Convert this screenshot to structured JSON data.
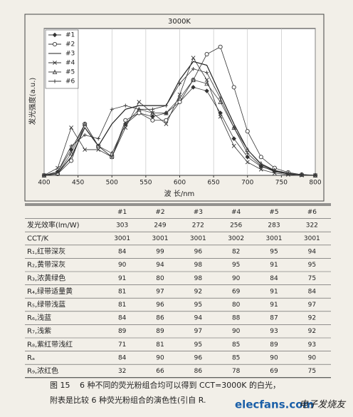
{
  "chart_data": {
    "type": "line",
    "title": "3000K",
    "x_label": "波 长/nm",
    "y_label": "发光强度(a.u.)",
    "x": [
      400,
      420,
      440,
      460,
      480,
      500,
      520,
      540,
      560,
      580,
      600,
      620,
      640,
      660,
      680,
      700,
      720,
      740,
      760,
      780,
      800
    ],
    "xlim": [
      400,
      800
    ],
    "xticks": [
      400,
      450,
      500,
      550,
      600,
      650,
      700,
      750,
      800
    ],
    "ylim": [
      0,
      20
    ],
    "grid": true,
    "legend": "upper left",
    "series": [
      {
        "name": "#1",
        "color": "#333333",
        "marker": "diamond",
        "values": [
          0,
          0.5,
          3.5,
          7,
          4,
          2.5,
          7,
          8.5,
          8,
          8.5,
          10,
          12,
          11.5,
          8.5,
          5,
          2.5,
          1.2,
          0.6,
          0.3,
          0.1,
          0
        ]
      },
      {
        "name": "#2",
        "color": "#333333",
        "marker": "circle",
        "values": [
          0,
          0.2,
          2,
          7,
          4,
          2.5,
          7.5,
          8.5,
          7.5,
          7.5,
          10,
          13,
          16.5,
          17.5,
          12,
          6,
          2.5,
          1,
          0.4,
          0.1,
          0
        ]
      },
      {
        "name": "#3",
        "color": "#222222",
        "marker": "none",
        "values": [
          0,
          0.3,
          2.5,
          6.5,
          4,
          7,
          9,
          9.5,
          9.5,
          9.5,
          13,
          15.5,
          15,
          11,
          7,
          3.5,
          1.5,
          0.6,
          0.2,
          0.1,
          0
        ]
      },
      {
        "name": "#4",
        "color": "#333333",
        "marker": "x",
        "values": [
          0,
          1,
          6.5,
          3.5,
          3.5,
          2.5,
          6.5,
          10,
          8.5,
          7,
          11,
          16,
          13,
          8,
          4,
          1.8,
          0.8,
          0.3,
          0.1,
          0,
          0
        ]
      },
      {
        "name": "#5",
        "color": "#444444",
        "marker": "triangle",
        "values": [
          0,
          0.3,
          3,
          7,
          4,
          3,
          7,
          9,
          8.5,
          8.5,
          10.5,
          13,
          12.5,
          10,
          6.5,
          3.5,
          1.6,
          0.7,
          0.3,
          0.1,
          0
        ]
      },
      {
        "name": "#6",
        "color": "#333333",
        "marker": "plus",
        "values": [
          0,
          0.5,
          4,
          5.5,
          5,
          9,
          9.5,
          9,
          9,
          9.5,
          12.5,
          14.5,
          14,
          10.5,
          6.5,
          3,
          1.3,
          0.5,
          0.2,
          0.1,
          0
        ]
      }
    ]
  },
  "table": {
    "header": [
      "#1",
      "#2",
      "#3",
      "#4",
      "#5",
      "#6"
    ],
    "rows": [
      {
        "label": "发光效率(lm/W)",
        "values": [
          303,
          249,
          272,
          256,
          283,
          322
        ]
      },
      {
        "label": "CCT/K",
        "values": [
          3001,
          3001,
          3001,
          3002,
          3001,
          3001
        ]
      },
      {
        "label": "R₁,红带深灰",
        "values": [
          84,
          99,
          96,
          82,
          95,
          94
        ]
      },
      {
        "label": "R₂,黄带深灰",
        "values": [
          90,
          94,
          98,
          95,
          91,
          95
        ]
      },
      {
        "label": "R₃,浓黄绿色",
        "values": [
          91,
          80,
          98,
          90,
          84,
          75
        ]
      },
      {
        "label": "R₄,绿带适量黄",
        "values": [
          81,
          97,
          92,
          69,
          91,
          84
        ]
      },
      {
        "label": "R₅,绿带浅蓝",
        "values": [
          81,
          96,
          95,
          80,
          91,
          97
        ]
      },
      {
        "label": "R₆,浅蓝",
        "values": [
          84,
          86,
          94,
          88,
          87,
          92
        ]
      },
      {
        "label": "R₇,浅紫",
        "values": [
          89,
          89,
          97,
          90,
          93,
          92
        ]
      },
      {
        "label": "R₈,紫红带浅红",
        "values": [
          71,
          81,
          95,
          85,
          89,
          93
        ]
      },
      {
        "label": "Rₐ",
        "values": [
          84,
          90,
          96,
          85,
          90,
          90
        ]
      },
      {
        "label": "R₉,浓红色",
        "values": [
          32,
          66,
          86,
          78,
          69,
          75
        ]
      }
    ]
  },
  "caption": {
    "figure": "图 15",
    "line1": "6 种不同的荧光粉组合均可以得到 CCT=3000K 的白光，",
    "line2": "附表是比较 6 种荧光粉组合的演色性(引自 R."
  },
  "watermark": {
    "site": "elecfans.com",
    "brand": "电子发烧友"
  }
}
